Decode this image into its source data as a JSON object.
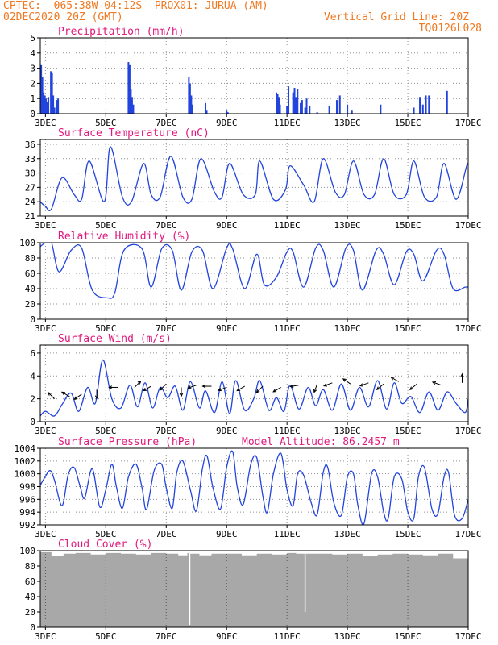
{
  "header": {
    "line1": "CPTEC:  065:38W-04:12S  PROX01: JURUA (AM)",
    "line2_left": "02DEC2020 20Z (GMT)",
    "line2_right": "Vertical Grid Line: 20Z",
    "line3_right": "TQ0126L028"
  },
  "colors": {
    "header": "#f07820",
    "title": "#e0187c",
    "line": "#2244dd",
    "cloud": "#a8a8a8",
    "grid": "#909090"
  },
  "x_axis": {
    "labels": [
      "3DEC",
      "5DEC",
      "7DEC",
      "9DEC",
      "11DEC",
      "13DEC",
      "15DEC",
      "17DEC"
    ],
    "start_day": 2.83,
    "end_day": 17.0
  },
  "chart_data": [
    {
      "id": "precip",
      "type": "bar",
      "title": "Precipitation (mm/h)",
      "ylim": [
        0,
        5
      ],
      "yticks": [
        "0",
        "1",
        "2",
        "3",
        "4",
        "5"
      ],
      "x": [
        2.86,
        2.9,
        2.94,
        2.98,
        3.02,
        3.06,
        3.1,
        3.18,
        3.22,
        3.26,
        3.3,
        3.38,
        3.42,
        5.75,
        5.79,
        5.83,
        5.87,
        5.91,
        7.75,
        7.79,
        7.83,
        7.87,
        8.3,
        8.34,
        9.0,
        9.04,
        10.65,
        10.69,
        10.73,
        10.77,
        11.0,
        11.05,
        11.2,
        11.25,
        11.3,
        11.35,
        11.45,
        11.5,
        11.6,
        11.65,
        11.75,
        12.0,
        12.4,
        12.65,
        12.75,
        13.0,
        13.15,
        14.1,
        15.2,
        15.4,
        15.5,
        15.6,
        15.7,
        16.3
      ],
      "values": [
        3.2,
        2.4,
        1.4,
        1.2,
        1.0,
        0.8,
        1.1,
        2.8,
        2.7,
        1.2,
        0.4,
        0.9,
        1.0,
        3.4,
        3.2,
        1.6,
        1.1,
        0.6,
        2.4,
        2.0,
        1.2,
        0.6,
        0.7,
        0.2,
        0.2,
        0.1,
        1.4,
        1.3,
        1.1,
        0.6,
        0.5,
        1.8,
        1.4,
        1.7,
        1.1,
        1.6,
        0.7,
        0.9,
        0.4,
        1.0,
        0.5,
        0.1,
        0.5,
        0.9,
        1.2,
        0.6,
        0.2,
        0.6,
        0.4,
        1.1,
        0.6,
        1.2,
        1.2,
        1.5
      ]
    },
    {
      "id": "temp",
      "type": "line",
      "title": "Surface Temperature (nC)",
      "ylim": [
        21,
        37
      ],
      "yticks": [
        "21",
        "24",
        "27",
        "30",
        "33",
        "36"
      ],
      "x": [
        2.83,
        3.0,
        3.2,
        3.55,
        3.95,
        4.2,
        4.45,
        4.95,
        5.15,
        5.55,
        5.85,
        6.25,
        6.5,
        6.8,
        7.15,
        7.55,
        7.85,
        8.15,
        8.6,
        8.85,
        9.1,
        9.55,
        9.95,
        10.1,
        10.55,
        10.95,
        11.1,
        11.55,
        11.9,
        12.2,
        12.6,
        12.9,
        13.2,
        13.55,
        13.9,
        14.2,
        14.55,
        14.95,
        15.2,
        15.55,
        15.95,
        16.2,
        16.6,
        16.95,
        17.0
      ],
      "values": [
        24.0,
        23.0,
        22.5,
        29.0,
        25.5,
        24.5,
        32.5,
        24.0,
        35.5,
        25.0,
        24.0,
        32.0,
        25.5,
        25.0,
        33.5,
        25.0,
        24.5,
        33.0,
        26.0,
        25.0,
        32.0,
        25.5,
        25.5,
        32.5,
        24.5,
        26.5,
        31.5,
        27.5,
        24.0,
        33.0,
        26.0,
        25.5,
        32.5,
        25.5,
        25.5,
        33.0,
        25.5,
        25.5,
        32.5,
        25.0,
        25.0,
        32.0,
        24.5,
        31.5,
        31.5
      ]
    },
    {
      "id": "rh",
      "type": "line",
      "title": "Relative Humidity (%)",
      "ylim": [
        0,
        100
      ],
      "yticks": [
        "0",
        "20",
        "40",
        "60",
        "80",
        "100"
      ],
      "x": [
        2.83,
        3.0,
        3.2,
        3.45,
        3.85,
        4.2,
        4.55,
        5.05,
        5.3,
        5.6,
        6.2,
        6.5,
        6.85,
        7.2,
        7.5,
        7.85,
        8.2,
        8.55,
        9.0,
        9.2,
        9.6,
        10.0,
        10.25,
        10.65,
        11.0,
        11.2,
        11.55,
        11.95,
        12.2,
        12.55,
        12.95,
        13.2,
        13.5,
        13.95,
        14.2,
        14.55,
        14.95,
        15.2,
        15.5,
        15.95,
        16.2,
        16.5,
        16.9,
        17.0
      ],
      "values": [
        95.0,
        100.0,
        100.0,
        62.0,
        90.0,
        93.0,
        38.0,
        28.0,
        35.0,
        90.0,
        92.0,
        42.0,
        92.0,
        90.0,
        38.0,
        88.0,
        90.0,
        40.0,
        93.0,
        92.0,
        40.0,
        85.0,
        45.0,
        55.0,
        88.0,
        88.0,
        42.0,
        93.0,
        90.0,
        42.0,
        93.0,
        90.0,
        38.0,
        90.0,
        85.0,
        45.0,
        88.0,
        85.0,
        50.0,
        90.0,
        85.0,
        40.0,
        42.0,
        42.0
      ]
    },
    {
      "id": "wind",
      "type": "line",
      "title": "Surface Wind (m/s)",
      "ylim": [
        0,
        6.7
      ],
      "yticks": [
        "0",
        "2",
        "4",
        "6"
      ],
      "x": [
        2.83,
        3.0,
        3.3,
        3.55,
        3.85,
        4.1,
        4.4,
        4.65,
        4.9,
        5.2,
        5.5,
        5.8,
        6.05,
        6.3,
        6.55,
        6.8,
        7.05,
        7.3,
        7.55,
        7.8,
        8.1,
        8.3,
        8.6,
        8.85,
        9.1,
        9.3,
        9.6,
        9.9,
        10.1,
        10.4,
        10.65,
        10.9,
        11.1,
        11.4,
        11.7,
        11.95,
        12.2,
        12.5,
        12.8,
        13.1,
        13.4,
        13.7,
        14.0,
        14.3,
        14.55,
        14.8,
        15.1,
        15.4,
        15.7,
        16.0,
        16.3,
        16.6,
        16.9,
        17.0
      ],
      "values": [
        0.5,
        0.9,
        0.5,
        1.5,
        2.5,
        0.9,
        3.0,
        1.6,
        5.4,
        2.0,
        1.2,
        3.2,
        1.3,
        3.4,
        1.2,
        3.0,
        2.1,
        3.1,
        1.0,
        3.5,
        1.2,
        2.7,
        0.8,
        3.5,
        0.7,
        3.6,
        1.0,
        2.0,
        3.6,
        1.0,
        2.1,
        0.9,
        3.2,
        1.1,
        3.0,
        1.4,
        2.8,
        1.0,
        3.3,
        1.0,
        3.0,
        1.3,
        3.6,
        1.1,
        3.4,
        1.6,
        2.2,
        0.8,
        2.6,
        1.0,
        2.6,
        1.6,
        0.8,
        2.0
      ],
      "arrows": [
        {
          "day": 3.3,
          "speed": 2.0,
          "angle": 135
        },
        {
          "day": 3.8,
          "speed": 2.2,
          "angle": 150
        },
        {
          "day": 4.2,
          "speed": 2.4,
          "angle": 215
        },
        {
          "day": 4.7,
          "speed": 2.8,
          "angle": 270
        },
        {
          "day": 5.4,
          "speed": 3.0,
          "angle": 180
        },
        {
          "day": 5.95,
          "speed": 3.0,
          "angle": 45
        },
        {
          "day": 6.5,
          "speed": 3.1,
          "angle": 210
        },
        {
          "day": 7.0,
          "speed": 3.3,
          "angle": 225
        },
        {
          "day": 7.5,
          "speed": 3.0,
          "angle": 270
        },
        {
          "day": 8.0,
          "speed": 3.2,
          "angle": 200
        },
        {
          "day": 8.5,
          "speed": 3.1,
          "angle": 180
        },
        {
          "day": 9.0,
          "speed": 3.0,
          "angle": 200
        },
        {
          "day": 9.6,
          "speed": 3.1,
          "angle": 210
        },
        {
          "day": 10.2,
          "speed": 3.1,
          "angle": 225
        },
        {
          "day": 10.8,
          "speed": 3.0,
          "angle": 210
        },
        {
          "day": 11.4,
          "speed": 3.2,
          "angle": 190
        },
        {
          "day": 12.0,
          "speed": 3.3,
          "angle": 250
        },
        {
          "day": 12.5,
          "speed": 3.4,
          "angle": 200
        },
        {
          "day": 13.1,
          "speed": 3.3,
          "angle": 145
        },
        {
          "day": 13.7,
          "speed": 3.4,
          "angle": 200
        },
        {
          "day": 14.2,
          "speed": 3.3,
          "angle": 220
        },
        {
          "day": 14.7,
          "speed": 3.5,
          "angle": 150
        },
        {
          "day": 15.3,
          "speed": 3.3,
          "angle": 220
        },
        {
          "day": 16.1,
          "speed": 3.2,
          "angle": 160
        },
        {
          "day": 16.8,
          "speed": 3.4,
          "angle": 90
        }
      ]
    },
    {
      "id": "pres",
      "type": "line",
      "title": "Surface Pressure (hPa)",
      "note": "Model Altitude: 86.2457 m",
      "ylim": [
        992,
        1004
      ],
      "yticks": [
        "992",
        "994",
        "996",
        "998",
        "1000",
        "1002",
        "1004"
      ],
      "x": [
        2.83,
        2.95,
        3.15,
        3.3,
        3.55,
        3.75,
        3.95,
        4.15,
        4.3,
        4.55,
        4.8,
        5.0,
        5.2,
        5.35,
        5.55,
        5.75,
        6.0,
        6.2,
        6.35,
        6.6,
        6.85,
        7.0,
        7.2,
        7.35,
        7.55,
        7.8,
        8.0,
        8.2,
        8.35,
        8.55,
        8.8,
        9.0,
        9.2,
        9.35,
        9.55,
        9.8,
        10.0,
        10.2,
        10.35,
        10.55,
        10.8,
        11.0,
        11.2,
        11.35,
        11.55,
        11.8,
        12.0,
        12.2,
        12.35,
        12.55,
        12.8,
        13.0,
        13.2,
        13.35,
        13.55,
        13.8,
        14.0,
        14.2,
        14.35,
        14.55,
        14.8,
        15.0,
        15.2,
        15.35,
        15.55,
        15.8,
        16.0,
        16.2,
        16.35,
        16.55,
        16.8,
        17.0
      ],
      "values": [
        998.2,
        999.2,
        1000.5,
        999.0,
        995.0,
        999.8,
        1001.0,
        998.0,
        996.2,
        1000.8,
        994.8,
        997.5,
        1001.5,
        998.0,
        994.6,
        999.5,
        1001.5,
        997.8,
        994.4,
        1000.5,
        1001.5,
        997.8,
        994.6,
        1000.2,
        1002.0,
        997.5,
        994.2,
        1000.8,
        1002.8,
        997.8,
        994.5,
        1001.0,
        1003.5,
        998.0,
        995.2,
        1001.5,
        1002.5,
        996.5,
        994.0,
        1000.0,
        1003.2,
        997.5,
        995.0,
        1000.0,
        999.8,
        995.5,
        993.6,
        1000.2,
        1001.0,
        995.5,
        993.5,
        999.5,
        1000.0,
        995.0,
        992.2,
        1000.0,
        999.5,
        994.0,
        993.0,
        999.5,
        999.2,
        994.0,
        993.0,
        999.5,
        1001.0,
        994.5,
        993.8,
        999.5,
        1000.2,
        993.5,
        993.0,
        996.0
      ]
    },
    {
      "id": "cloud",
      "type": "area",
      "title": "Cloud Cover (%)",
      "ylim": [
        0,
        100
      ],
      "yticks": [
        "0",
        "20",
        "40",
        "60",
        "80",
        "100"
      ],
      "x": [
        2.83,
        3.2,
        3.6,
        4.0,
        4.5,
        5.0,
        5.5,
        6.0,
        6.5,
        7.0,
        7.4,
        7.7,
        7.75,
        7.8,
        8.1,
        8.5,
        9.0,
        9.5,
        10.0,
        10.5,
        11.0,
        11.3,
        11.55,
        11.58,
        11.62,
        12.0,
        12.5,
        13.0,
        13.5,
        14.0,
        14.5,
        15.0,
        15.5,
        16.0,
        16.5,
        17.0
      ],
      "values": [
        98,
        93,
        96,
        97,
        95,
        97,
        96,
        95,
        97,
        96,
        94,
        97,
        3,
        96,
        94,
        96,
        96,
        94,
        96,
        95,
        97,
        96,
        96,
        20,
        96,
        96,
        95,
        96,
        93,
        95,
        96,
        95,
        94,
        96,
        90,
        96
      ]
    }
  ]
}
